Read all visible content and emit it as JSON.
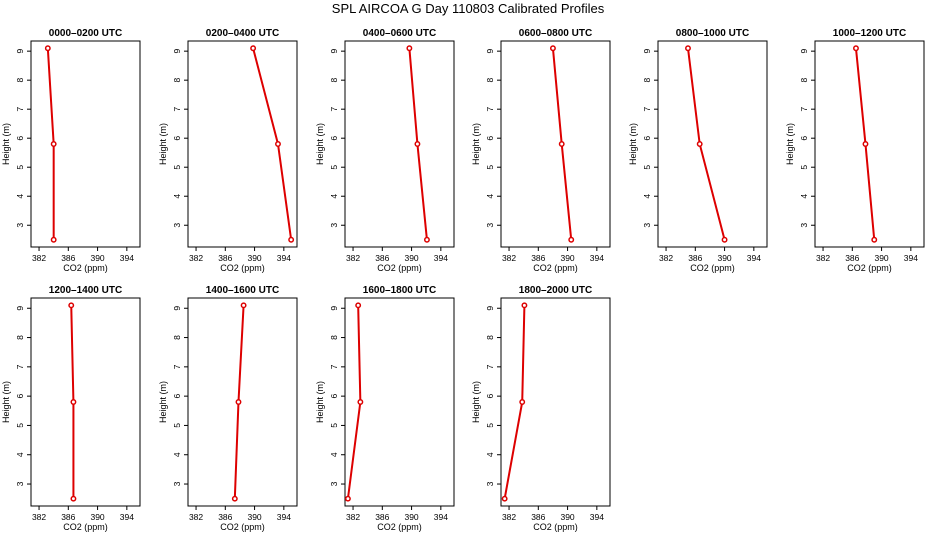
{
  "title": "SPL AIRCOA G  Day 110803  Calibrated Profiles",
  "chart_data": [
    {
      "type": "line",
      "title": "0000–0200 UTC",
      "xlabel": "CO2 (ppm)",
      "ylabel": "Height (m)",
      "x_ticks": [
        "382",
        "386",
        "390",
        "394"
      ],
      "y_ticks": [
        "3",
        "4",
        "5",
        "6",
        "7",
        "8",
        "9"
      ],
      "xlim": [
        380.9,
        395.8
      ],
      "ylim": [
        2.25,
        9.35
      ],
      "series": [
        {
          "values": [
            {
              "x": 383.2,
              "y": 9.1
            },
            {
              "x": 384.0,
              "y": 5.8
            },
            {
              "x": 384.0,
              "y": 2.5
            }
          ]
        }
      ]
    },
    {
      "type": "line",
      "title": "0200–0400 UTC",
      "xlabel": "CO2 (ppm)",
      "ylabel": "Height (m)",
      "x_ticks": [
        "382",
        "386",
        "390",
        "394"
      ],
      "y_ticks": [
        "3",
        "4",
        "5",
        "6",
        "7",
        "8",
        "9"
      ],
      "xlim": [
        380.9,
        395.8
      ],
      "ylim": [
        2.25,
        9.35
      ],
      "series": [
        {
          "values": [
            {
              "x": 389.8,
              "y": 9.1
            },
            {
              "x": 393.2,
              "y": 5.8
            },
            {
              "x": 395.0,
              "y": 2.5
            }
          ]
        }
      ]
    },
    {
      "type": "line",
      "title": "0400–0600 UTC",
      "xlabel": "CO2 (ppm)",
      "ylabel": "Height (m)",
      "x_ticks": [
        "382",
        "386",
        "390",
        "394"
      ],
      "y_ticks": [
        "3",
        "4",
        "5",
        "6",
        "7",
        "8",
        "9"
      ],
      "xlim": [
        380.9,
        395.8
      ],
      "ylim": [
        2.25,
        9.35
      ],
      "series": [
        {
          "values": [
            {
              "x": 389.7,
              "y": 9.1
            },
            {
              "x": 390.8,
              "y": 5.8
            },
            {
              "x": 392.1,
              "y": 2.5
            }
          ]
        }
      ]
    },
    {
      "type": "line",
      "title": "0600–0800 UTC",
      "xlabel": "CO2 (ppm)",
      "ylabel": "Height (m)",
      "x_ticks": [
        "382",
        "386",
        "390",
        "394"
      ],
      "y_ticks": [
        "3",
        "4",
        "5",
        "6",
        "7",
        "8",
        "9"
      ],
      "xlim": [
        380.9,
        395.8
      ],
      "ylim": [
        2.25,
        9.35
      ],
      "series": [
        {
          "values": [
            {
              "x": 388.0,
              "y": 9.1
            },
            {
              "x": 389.2,
              "y": 5.8
            },
            {
              "x": 390.5,
              "y": 2.5
            }
          ]
        }
      ]
    },
    {
      "type": "line",
      "title": "0800–1000 UTC",
      "xlabel": "CO2 (ppm)",
      "ylabel": "Height (m)",
      "x_ticks": [
        "382",
        "386",
        "390",
        "394"
      ],
      "y_ticks": [
        "3",
        "4",
        "5",
        "6",
        "7",
        "8",
        "9"
      ],
      "xlim": [
        380.9,
        395.8
      ],
      "ylim": [
        2.25,
        9.35
      ],
      "series": [
        {
          "values": [
            {
              "x": 385.0,
              "y": 9.1
            },
            {
              "x": 386.6,
              "y": 5.8
            },
            {
              "x": 390.0,
              "y": 2.5
            }
          ]
        }
      ]
    },
    {
      "type": "line",
      "title": "1000–1200 UTC",
      "xlabel": "CO2 (ppm)",
      "ylabel": "Height (m)",
      "x_ticks": [
        "382",
        "386",
        "390",
        "394"
      ],
      "y_ticks": [
        "3",
        "4",
        "5",
        "6",
        "7",
        "8",
        "9"
      ],
      "xlim": [
        380.9,
        395.8
      ],
      "ylim": [
        2.25,
        9.35
      ],
      "series": [
        {
          "values": [
            {
              "x": 386.5,
              "y": 9.1
            },
            {
              "x": 387.8,
              "y": 5.8
            },
            {
              "x": 389.0,
              "y": 2.5
            }
          ]
        }
      ]
    },
    {
      "type": "line",
      "title": "1200–1400 UTC",
      "xlabel": "CO2 (ppm)",
      "ylabel": "Height (m)",
      "x_ticks": [
        "382",
        "386",
        "390",
        "394"
      ],
      "y_ticks": [
        "3",
        "4",
        "5",
        "6",
        "7",
        "8",
        "9"
      ],
      "xlim": [
        380.9,
        395.8
      ],
      "ylim": [
        2.25,
        9.35
      ],
      "series": [
        {
          "values": [
            {
              "x": 386.4,
              "y": 9.1
            },
            {
              "x": 386.7,
              "y": 5.8
            },
            {
              "x": 386.7,
              "y": 2.5
            }
          ]
        }
      ]
    },
    {
      "type": "line",
      "title": "1400–1600 UTC",
      "xlabel": "CO2 (ppm)",
      "ylabel": "Height (m)",
      "x_ticks": [
        "382",
        "386",
        "390",
        "394"
      ],
      "y_ticks": [
        "3",
        "4",
        "5",
        "6",
        "7",
        "8",
        "9"
      ],
      "xlim": [
        380.9,
        395.8
      ],
      "ylim": [
        2.25,
        9.35
      ],
      "series": [
        {
          "values": [
            {
              "x": 388.5,
              "y": 9.1
            },
            {
              "x": 387.8,
              "y": 5.8
            },
            {
              "x": 387.3,
              "y": 2.5
            }
          ]
        }
      ]
    },
    {
      "type": "line",
      "title": "1600–1800 UTC",
      "xlabel": "CO2 (ppm)",
      "ylabel": "Height (m)",
      "x_ticks": [
        "382",
        "386",
        "390",
        "394"
      ],
      "y_ticks": [
        "3",
        "4",
        "5",
        "6",
        "7",
        "8",
        "9"
      ],
      "xlim": [
        380.9,
        395.8
      ],
      "ylim": [
        2.25,
        9.35
      ],
      "series": [
        {
          "values": [
            {
              "x": 382.7,
              "y": 9.1
            },
            {
              "x": 383.0,
              "y": 5.8
            },
            {
              "x": 381.3,
              "y": 2.5
            }
          ]
        }
      ]
    },
    {
      "type": "line",
      "title": "1800–2000 UTC",
      "xlabel": "CO2 (ppm)",
      "ylabel": "Height (m)",
      "x_ticks": [
        "382",
        "386",
        "390",
        "394"
      ],
      "y_ticks": [
        "3",
        "4",
        "5",
        "6",
        "7",
        "8",
        "9"
      ],
      "xlim": [
        380.9,
        395.8
      ],
      "ylim": [
        2.25,
        9.35
      ],
      "series": [
        {
          "values": [
            {
              "x": 384.1,
              "y": 9.1
            },
            {
              "x": 383.8,
              "y": 5.8
            },
            {
              "x": 381.4,
              "y": 2.5
            }
          ]
        }
      ]
    }
  ]
}
